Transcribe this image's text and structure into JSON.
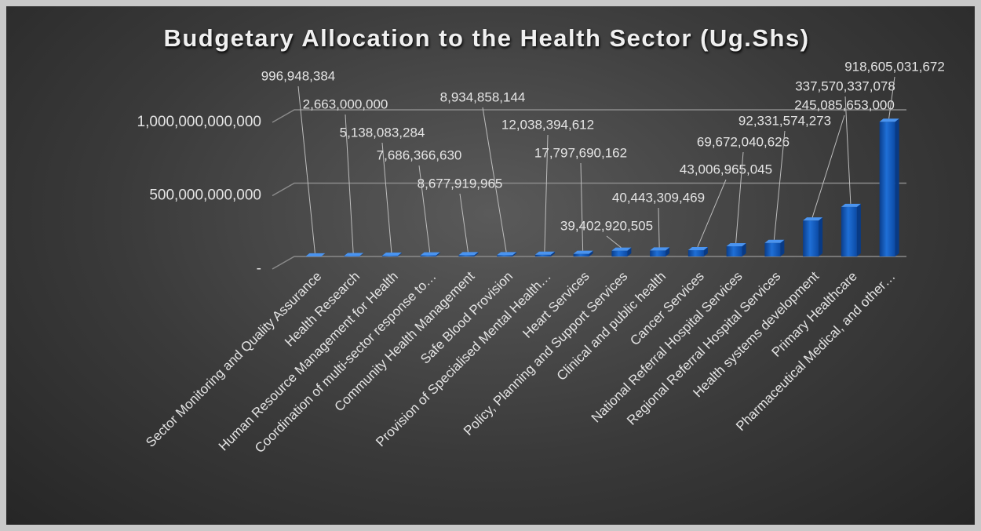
{
  "chart_data": {
    "type": "bar",
    "title": "Budgetary Allocation to the Health Sector (Ug.Shs)",
    "categories": [
      "Sector Monitoring and Quality Assurance",
      "Health Research",
      "Human Resource Management for Health",
      "Coordination of multi-sector response to…",
      "Community Health Management",
      "Safe Blood Provision",
      "Provision of Specialised Mental Health…",
      "Heart Services",
      "Policy, Planning and Support Services",
      "Clinical and public health",
      "Cancer Services",
      "National Referral Hospital Services",
      "Regional Referral Hospital Services",
      "Health systems development",
      "Primary Healthcare",
      "Pharmaceutical Medical, and other…"
    ],
    "values": [
      996948384,
      2663000000,
      5138083284,
      7686366630,
      8677919965,
      8934858144,
      12038394612,
      17797690162,
      39402920505,
      40443309469,
      43006965045,
      69672040626,
      92331574273,
      245085653000,
      337570337078,
      918605031672
    ],
    "value_labels": [
      "996,948,384",
      "2,663,000,000",
      "5,138,083,284",
      "7,686,366,630",
      "8,677,919,965",
      "8,934,858,144",
      "12,038,394,612",
      "17,797,690,162",
      "39,402,920,505",
      "40,443,309,469",
      "43,006,965,045",
      "69,672,040,626",
      "92,331,574,273",
      "245,085,653,000",
      "337,570,337,078",
      "918,605,031,672"
    ],
    "color": "#1f6fd6",
    "ylim": [
      0,
      1000000000000
    ],
    "yticks": [
      {
        "value": 0,
        "label": "-"
      },
      {
        "value": 500000000000,
        "label": "500,000,000,000"
      },
      {
        "value": 1000000000000,
        "label": "1,000,000,000,000"
      }
    ],
    "grid": true
  }
}
